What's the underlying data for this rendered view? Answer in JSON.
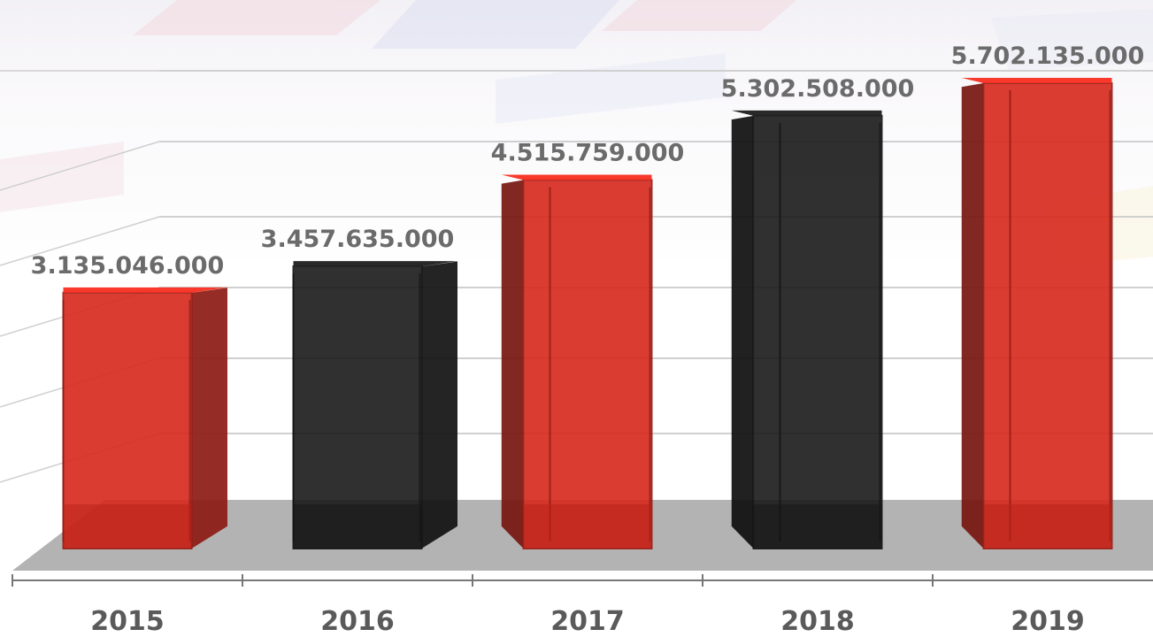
{
  "chart_data": {
    "type": "bar",
    "categories": [
      "2015",
      "2016",
      "2017",
      "2018",
      "2019"
    ],
    "values": [
      3135046000,
      3457635000,
      4515759000,
      5302508000,
      5702135000
    ],
    "value_labels": [
      "3.135.046.000",
      "3.457.635.000",
      "4.515.759.000",
      "5.302.508.000",
      "5.702.135.000"
    ],
    "bar_colors": [
      "#d8281c",
      "#1a1a1a",
      "#d8281c",
      "#1a1a1a",
      "#d8281c"
    ],
    "ylim": [
      0,
      5800000000
    ],
    "grid": true,
    "style": "3d-box"
  },
  "colors": {
    "red": "#d8281c",
    "black": "#1a1a1a",
    "floor": "#b3b3b3",
    "label": "#6b6b6b"
  }
}
